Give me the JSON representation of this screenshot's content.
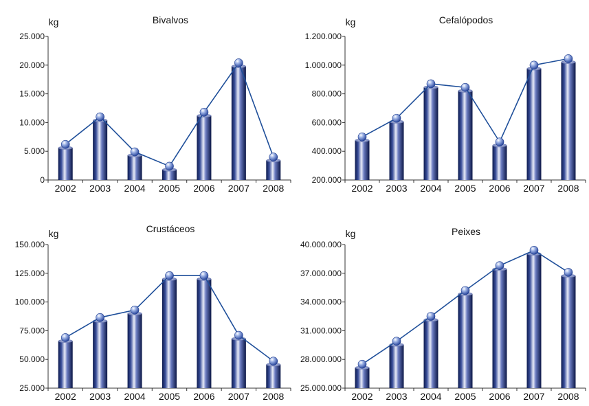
{
  "chart_data": [
    {
      "type": "bar",
      "title": "Bivalvos",
      "ylabel": "kg",
      "categories": [
        "2002",
        "2003",
        "2004",
        "2005",
        "2006",
        "2007",
        "2008"
      ],
      "values": [
        6200,
        11000,
        4900,
        2400,
        11800,
        20400,
        4000
      ],
      "ylim": [
        0,
        25000
      ],
      "yticks": [
        0,
        5000,
        10000,
        15000,
        20000,
        25000
      ],
      "ytick_labels": [
        "0",
        "5.000",
        "10.000",
        "15.000",
        "20.000",
        "25.000"
      ],
      "overlay": "line"
    },
    {
      "type": "bar",
      "title": "Cefalópodos",
      "ylabel": "kg",
      "categories": [
        "2002",
        "2003",
        "2004",
        "2005",
        "2006",
        "2007",
        "2008"
      ],
      "values": [
        500000,
        630000,
        870000,
        845000,
        465000,
        1000000,
        1045000
      ],
      "ylim": [
        200000,
        1200000
      ],
      "yticks": [
        200000,
        400000,
        600000,
        800000,
        1000000,
        1200000
      ],
      "ytick_labels": [
        "200.000",
        "400.000",
        "600.000",
        "800.000",
        "1.000.000",
        "1.200.000"
      ],
      "overlay": "line"
    },
    {
      "type": "bar",
      "title": "Crustáceos",
      "ylabel": "kg",
      "categories": [
        "2002",
        "2003",
        "2004",
        "2005",
        "2006",
        "2007",
        "2008"
      ],
      "values": [
        69000,
        86500,
        93000,
        123000,
        123000,
        71000,
        48500
      ],
      "ylim": [
        25000,
        150000
      ],
      "yticks": [
        25000,
        50000,
        75000,
        100000,
        125000,
        150000
      ],
      "ytick_labels": [
        "25.000",
        "50.000",
        "75.000",
        "100.000",
        "125.000",
        "150.000"
      ],
      "overlay": "line"
    },
    {
      "type": "bar",
      "title": "Peixes",
      "ylabel": "kg",
      "categories": [
        "2002",
        "2003",
        "2004",
        "2005",
        "2006",
        "2007",
        "2008"
      ],
      "values": [
        27500000,
        29900000,
        32500000,
        35200000,
        37800000,
        39400000,
        37100000
      ],
      "ylim": [
        25000000,
        40000000
      ],
      "yticks": [
        25000000,
        28000000,
        31000000,
        34000000,
        37000000,
        40000000
      ],
      "ytick_labels": [
        "25.000.000",
        "28.000.000",
        "31.000.000",
        "34.000.000",
        "37.000.000",
        "40.000.000"
      ],
      "overlay": "line"
    }
  ]
}
